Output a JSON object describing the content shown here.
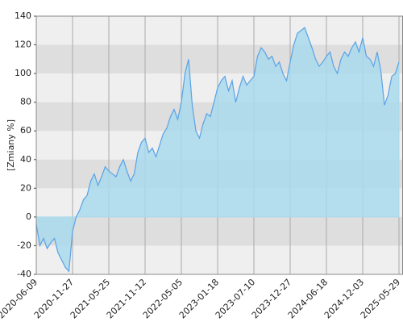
{
  "chart_data": {
    "type": "area",
    "ylabel": "[Zmiany %]",
    "categories": [
      "2020-06-09",
      null,
      null,
      null,
      null,
      null,
      null,
      null,
      null,
      null,
      "2020-11-27",
      null,
      null,
      null,
      null,
      null,
      null,
      null,
      null,
      null,
      "2021-05-25",
      null,
      null,
      null,
      null,
      null,
      null,
      null,
      null,
      null,
      "2021-11-12",
      null,
      null,
      null,
      null,
      null,
      null,
      null,
      null,
      null,
      "2022-05-05",
      null,
      null,
      null,
      null,
      null,
      null,
      null,
      null,
      null,
      "2023-01-18",
      null,
      null,
      null,
      null,
      null,
      null,
      null,
      null,
      null,
      "2023-07-10",
      null,
      null,
      null,
      null,
      null,
      null,
      null,
      null,
      null,
      "2023-12-27",
      null,
      null,
      null,
      null,
      null,
      null,
      null,
      null,
      null,
      "2024-06-18",
      null,
      null,
      null,
      null,
      null,
      null,
      null,
      null,
      null,
      "2024-12-03",
      null,
      null,
      null,
      null,
      null,
      null,
      null,
      null,
      null,
      "2025-05-29"
    ],
    "values": [
      -5,
      -20,
      -15,
      -22,
      -18,
      -15,
      -25,
      -30,
      -35,
      -38,
      -10,
      0,
      5,
      12,
      15,
      25,
      30,
      22,
      28,
      35,
      32,
      30,
      28,
      35,
      40,
      32,
      25,
      30,
      45,
      52,
      55,
      45,
      48,
      42,
      50,
      58,
      62,
      70,
      75,
      68,
      80,
      100,
      110,
      78,
      60,
      55,
      65,
      72,
      70,
      80,
      90,
      95,
      98,
      88,
      95,
      80,
      90,
      98,
      92,
      95,
      98,
      112,
      118,
      115,
      110,
      112,
      105,
      108,
      100,
      95,
      108,
      120,
      128,
      130,
      132,
      125,
      118,
      110,
      105,
      108,
      112,
      115,
      105,
      100,
      110,
      115,
      112,
      118,
      122,
      115,
      125,
      112,
      110,
      105,
      115,
      102,
      78,
      85,
      98,
      100,
      108
    ],
    "line_color": "#5ba3e6",
    "fill_color": "#a9d9ec",
    "ylim": [
      -40,
      140
    ],
    "yticks": [
      -40,
      -20,
      0,
      20,
      40,
      60,
      80,
      100,
      120,
      140
    ],
    "grid": true
  }
}
